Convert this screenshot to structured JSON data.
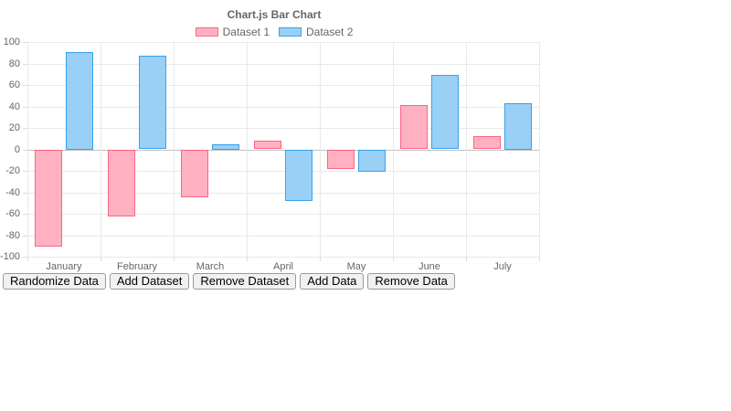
{
  "page": {
    "title": "Chart.js Bar Chart"
  },
  "chart_data": {
    "type": "bar",
    "title": "Chart.js Bar Chart",
    "categories": [
      "January",
      "February",
      "March",
      "April",
      "May",
      "June",
      "July"
    ],
    "series": [
      {
        "name": "Dataset 1",
        "fill": "#ffb1c1",
        "border": "#ff6384",
        "values": [
          -90,
          -62,
          -44,
          8,
          -18,
          41,
          12
        ]
      },
      {
        "name": "Dataset 2",
        "fill": "#9ad0f5",
        "border": "#36a2eb",
        "values": [
          91,
          87,
          5,
          -48,
          -20,
          69,
          43
        ]
      }
    ],
    "ylim": [
      -100,
      100
    ],
    "yticks": [
      100,
      80,
      60,
      40,
      20,
      0,
      -20,
      -40,
      -60,
      -80,
      -100
    ],
    "legend_position": "top",
    "grid": true,
    "colors": {
      "grid": "#e9e9e9",
      "zero_line": "#c2c2c2",
      "text": "#666666"
    }
  },
  "toolbar": {
    "buttons": [
      {
        "label": "Randomize Data",
        "name": "randomize-data-button"
      },
      {
        "label": "Add Dataset",
        "name": "add-dataset-button"
      },
      {
        "label": "Remove Dataset",
        "name": "remove-dataset-button"
      },
      {
        "label": "Add Data",
        "name": "add-data-button"
      },
      {
        "label": "Remove Data",
        "name": "remove-data-button"
      }
    ]
  }
}
